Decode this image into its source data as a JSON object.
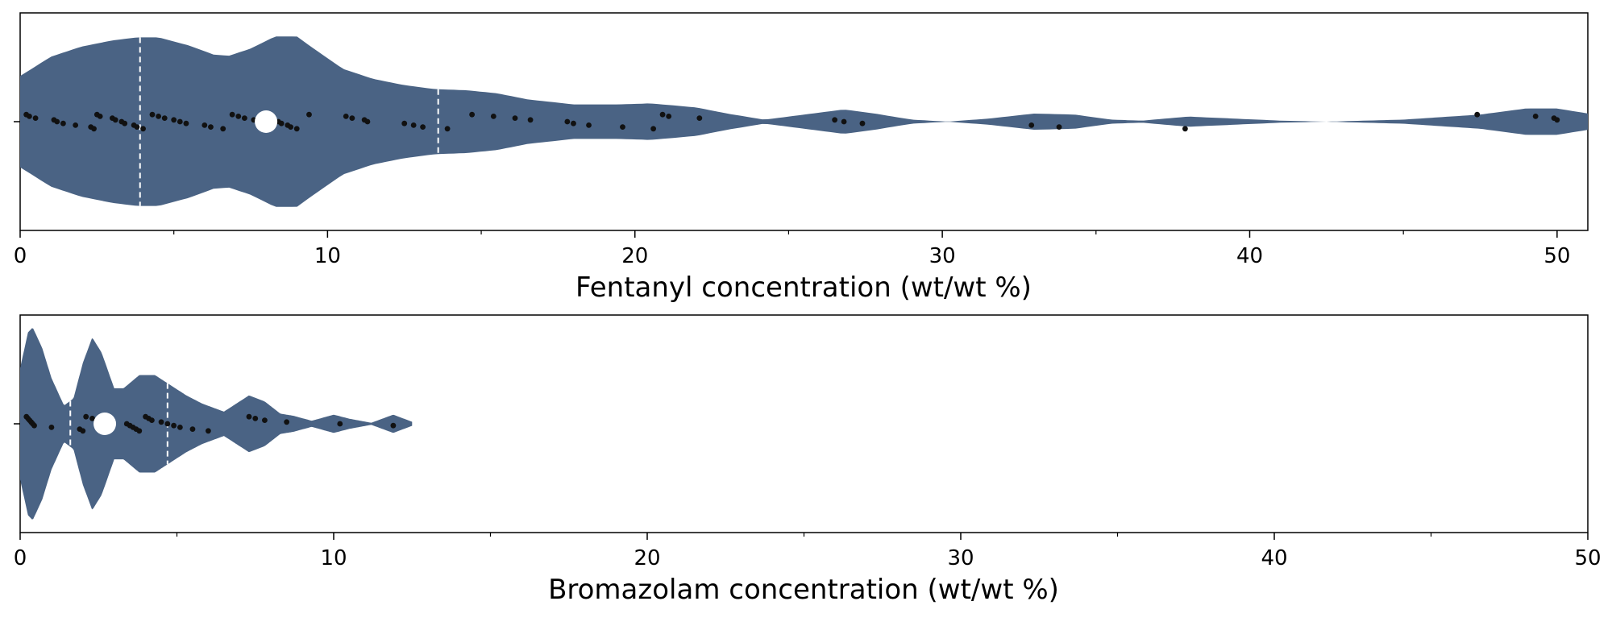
{
  "colors": {
    "violin_fill": "#4a6384",
    "point": "#111111",
    "median": "#ffffff",
    "quartile_line": "#ffffff",
    "axis": "#000000"
  },
  "chart_data": [
    {
      "type": "violin",
      "xlabel": "Fentanyl concentration (wt/wt %)",
      "xlim": [
        0,
        51
      ],
      "xticks": [
        0,
        10,
        20,
        30,
        40,
        50
      ],
      "xtick_labels": [
        "0",
        "10",
        "20",
        "30",
        "40",
        "50"
      ],
      "minor_xticks": [
        5,
        15,
        25,
        35,
        45
      ],
      "grid": false,
      "median": 8.0,
      "quartiles": [
        3.9,
        13.6
      ],
      "density": [
        [
          0,
          0.45
        ],
        [
          1,
          0.64
        ],
        [
          2,
          0.74
        ],
        [
          3,
          0.8
        ],
        [
          3.8,
          0.83
        ],
        [
          4.5,
          0.83
        ],
        [
          5.5,
          0.75
        ],
        [
          6.3,
          0.66
        ],
        [
          6.8,
          0.65
        ],
        [
          7.5,
          0.72
        ],
        [
          8.3,
          0.84
        ],
        [
          9.0,
          0.84
        ],
        [
          9.5,
          0.73
        ],
        [
          10.5,
          0.52
        ],
        [
          11.5,
          0.42
        ],
        [
          12.5,
          0.36
        ],
        [
          13.5,
          0.32
        ],
        [
          14.5,
          0.31
        ],
        [
          15.5,
          0.28
        ],
        [
          16.5,
          0.22
        ],
        [
          18,
          0.17
        ],
        [
          19.5,
          0.17
        ],
        [
          20.5,
          0.18
        ],
        [
          22,
          0.14
        ],
        [
          23,
          0.08
        ],
        [
          24.2,
          0.02
        ],
        [
          25,
          0.05
        ],
        [
          26.8,
          0.12
        ],
        [
          27.8,
          0.08
        ],
        [
          29,
          0.02
        ],
        [
          30.2,
          0.0
        ],
        [
          31.5,
          0.03
        ],
        [
          33,
          0.08
        ],
        [
          34.3,
          0.07
        ],
        [
          35.5,
          0.02
        ],
        [
          36.5,
          0.01
        ],
        [
          38,
          0.05
        ],
        [
          39.5,
          0.03
        ],
        [
          41,
          0.01
        ],
        [
          42.5,
          0.0
        ],
        [
          45,
          0.02
        ],
        [
          47.5,
          0.07
        ],
        [
          49,
          0.13
        ],
        [
          50,
          0.13
        ],
        [
          51,
          0.08
        ]
      ],
      "points": [
        0.2,
        0.3,
        0.5,
        1.1,
        1.2,
        1.4,
        1.8,
        2.3,
        2.4,
        2.5,
        2.6,
        3.0,
        3.1,
        3.3,
        3.4,
        3.7,
        3.8,
        4.0,
        4.3,
        4.5,
        4.7,
        5.0,
        5.2,
        5.4,
        6.0,
        6.2,
        6.6,
        6.9,
        7.1,
        7.3,
        7.6,
        8.4,
        8.5,
        8.7,
        8.8,
        9.0,
        9.4,
        10.6,
        10.8,
        11.2,
        11.3,
        12.5,
        12.8,
        13.1,
        13.9,
        14.7,
        15.4,
        16.1,
        16.6,
        17.8,
        18.0,
        18.5,
        19.6,
        20.6,
        20.9,
        21.1,
        22.1,
        26.5,
        26.8,
        27.4,
        32.9,
        33.8,
        37.9,
        47.4,
        49.3,
        49.9,
        50.0
      ]
    },
    {
      "type": "violin",
      "xlabel": "Bromazolam concentration (wt/wt %)",
      "xlim": [
        0,
        50
      ],
      "xticks": [
        0,
        10,
        20,
        30,
        40,
        50
      ],
      "xtick_labels": [
        "0",
        "10",
        "20",
        "30",
        "40",
        "50"
      ],
      "minor_xticks": [
        5,
        15,
        25,
        35,
        45
      ],
      "grid": false,
      "median": 2.7,
      "quartiles": [
        1.6,
        4.7
      ],
      "density": [
        [
          0,
          0.55
        ],
        [
          0.25,
          0.9
        ],
        [
          0.4,
          0.95
        ],
        [
          0.7,
          0.75
        ],
        [
          1.0,
          0.45
        ],
        [
          1.4,
          0.18
        ],
        [
          1.7,
          0.25
        ],
        [
          2.0,
          0.6
        ],
        [
          2.3,
          0.85
        ],
        [
          2.6,
          0.7
        ],
        [
          3.0,
          0.35
        ],
        [
          3.3,
          0.35
        ],
        [
          3.8,
          0.48
        ],
        [
          4.3,
          0.48
        ],
        [
          4.8,
          0.38
        ],
        [
          5.3,
          0.28
        ],
        [
          5.8,
          0.2
        ],
        [
          6.5,
          0.12
        ],
        [
          7.0,
          0.22
        ],
        [
          7.3,
          0.28
        ],
        [
          7.8,
          0.22
        ],
        [
          8.3,
          0.1
        ],
        [
          8.7,
          0.08
        ],
        [
          9.3,
          0.03
        ],
        [
          10.0,
          0.09
        ],
        [
          10.5,
          0.05
        ],
        [
          11.2,
          0.01
        ],
        [
          11.9,
          0.09
        ],
        [
          12.5,
          0.02
        ]
      ],
      "points": [
        0.2,
        0.25,
        0.3,
        0.35,
        0.4,
        0.45,
        1.0,
        1.9,
        2.0,
        2.1,
        2.3,
        2.5,
        2.6,
        3.4,
        3.5,
        3.6,
        3.7,
        3.8,
        4.0,
        4.1,
        4.2,
        4.5,
        4.7,
        4.9,
        5.1,
        5.5,
        6.0,
        7.3,
        7.5,
        7.8,
        8.5,
        10.2,
        11.9
      ]
    }
  ]
}
